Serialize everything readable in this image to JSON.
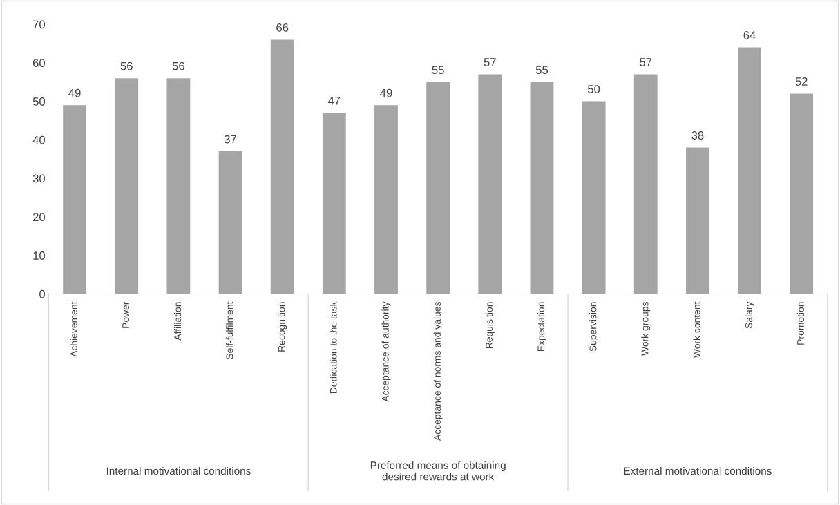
{
  "chart_data": {
    "type": "bar",
    "categories": [
      "Achievement",
      "Power",
      "Affiliation",
      "Self-fulfilment",
      "Recognition",
      "Dedication to the task",
      "Acceptance of authority",
      "Acceptance of norms and values",
      "Requisition",
      "Expectation",
      "Supervision",
      "Work groups",
      "Work content",
      "Salary",
      "Promotion"
    ],
    "values": [
      49,
      56,
      56,
      37,
      66,
      47,
      49,
      55,
      57,
      55,
      50,
      57,
      38,
      64,
      52
    ],
    "color": "#a5a5a5",
    "data_labels": true,
    "ylim": [
      0,
      70
    ],
    "yticks": [
      0,
      10,
      20,
      30,
      40,
      50,
      60,
      70
    ],
    "annotations": [
      "Internal motivational conditions",
      "Preferred means of obtaining desired rewards at work",
      "External motivational conditions"
    ]
  }
}
